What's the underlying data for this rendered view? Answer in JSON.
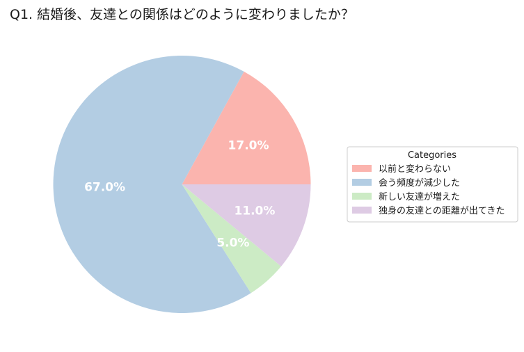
{
  "chart_data": {
    "type": "pie",
    "title": "Q1. 結婚後、友達との関係はどのように変わりましたか？",
    "legend": {
      "title": "Categories",
      "placement": "right"
    },
    "slices": [
      {
        "label": "以前と変わらない",
        "value": 17.0,
        "display": "17.0%",
        "color": "#fbb4ae"
      },
      {
        "label": "会う頻度が減少した",
        "value": 67.0,
        "display": "67.0%",
        "color": "#b3cde3"
      },
      {
        "label": "新しい友達が増えた",
        "value": 5.0,
        "display": "5.0%",
        "color": "#ccebc5"
      },
      {
        "label": "独身の友達との距離が出てきた",
        "value": 11.0,
        "display": "11.0%",
        "color": "#decbe4"
      }
    ]
  }
}
